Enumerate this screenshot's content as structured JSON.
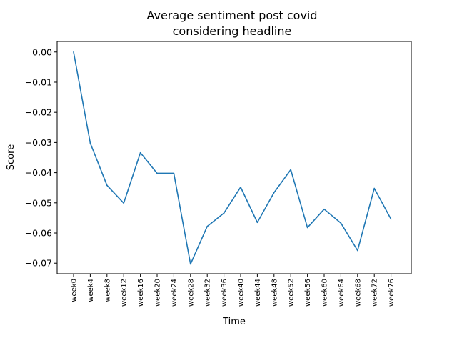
{
  "chart_data": {
    "type": "line",
    "title_line1": "Average sentiment post covid",
    "title_line2": "considering headline",
    "xlabel": "Time",
    "ylabel": "Score",
    "categories": [
      "week0",
      "week4",
      "week8",
      "week12",
      "week16",
      "week20",
      "week24",
      "week28",
      "week32",
      "week36",
      "week40",
      "week44",
      "week48",
      "week52",
      "week56",
      "week60",
      "week64",
      "week68",
      "week72",
      "week76"
    ],
    "series": [
      {
        "color": "#1f77b4",
        "values": [
          0.0,
          -0.0302,
          -0.0442,
          -0.0501,
          -0.0334,
          -0.0402,
          -0.0402,
          -0.0703,
          -0.0578,
          -0.0534,
          -0.0448,
          -0.0565,
          -0.0466,
          -0.039,
          -0.0582,
          -0.0521,
          -0.0567,
          -0.0658,
          -0.0452,
          -0.0554
        ]
      }
    ],
    "ylim": [
      -0.0735,
      0.0035
    ],
    "yticks": [
      0.0,
      -0.01,
      -0.02,
      -0.03,
      -0.04,
      -0.05,
      -0.06,
      -0.07
    ],
    "ytick_labels": [
      "0.00",
      "−0.01",
      "−0.02",
      "−0.03",
      "−0.04",
      "−0.05",
      "−0.06",
      "−0.07"
    ],
    "grid": false,
    "legend": false
  }
}
